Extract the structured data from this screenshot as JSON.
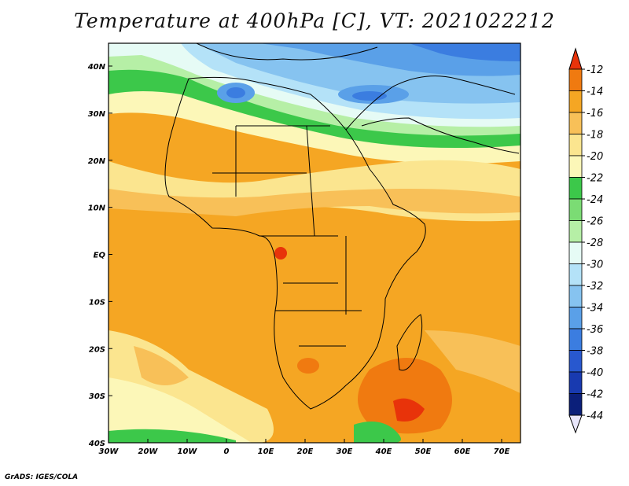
{
  "title": "Temperature at 400hPa [C], VT: 2021022212",
  "footer": "GrADS: IGES/COLA",
  "map": {
    "lat_labels": [
      "40N",
      "30N",
      "20N",
      "10N",
      "EQ",
      "10S",
      "20S",
      "30S",
      "40S"
    ],
    "lon_labels": [
      "30W",
      "20W",
      "10W",
      "0",
      "10E",
      "20E",
      "30E",
      "40E",
      "50E",
      "60E",
      "70E"
    ]
  },
  "colorbar": {
    "labels": [
      "-12",
      "-14",
      "-16",
      "-18",
      "-20",
      "-22",
      "-24",
      "-26",
      "-28",
      "-30",
      "-32",
      "-34",
      "-36",
      "-38",
      "-40",
      "-42",
      "-44"
    ],
    "colors": [
      "#e8330a",
      "#f07a10",
      "#f5a623",
      "#f8c058",
      "#fbe58f",
      "#fcf7b8",
      "#3cc84a",
      "#7bdc74",
      "#b6efa6",
      "#e6fbf5",
      "#b4e2f8",
      "#86c3f0",
      "#5aa0e8",
      "#3b7de0",
      "#2858cf",
      "#183ab0",
      "#0b1f7a",
      "#e8e6fb"
    ]
  }
}
